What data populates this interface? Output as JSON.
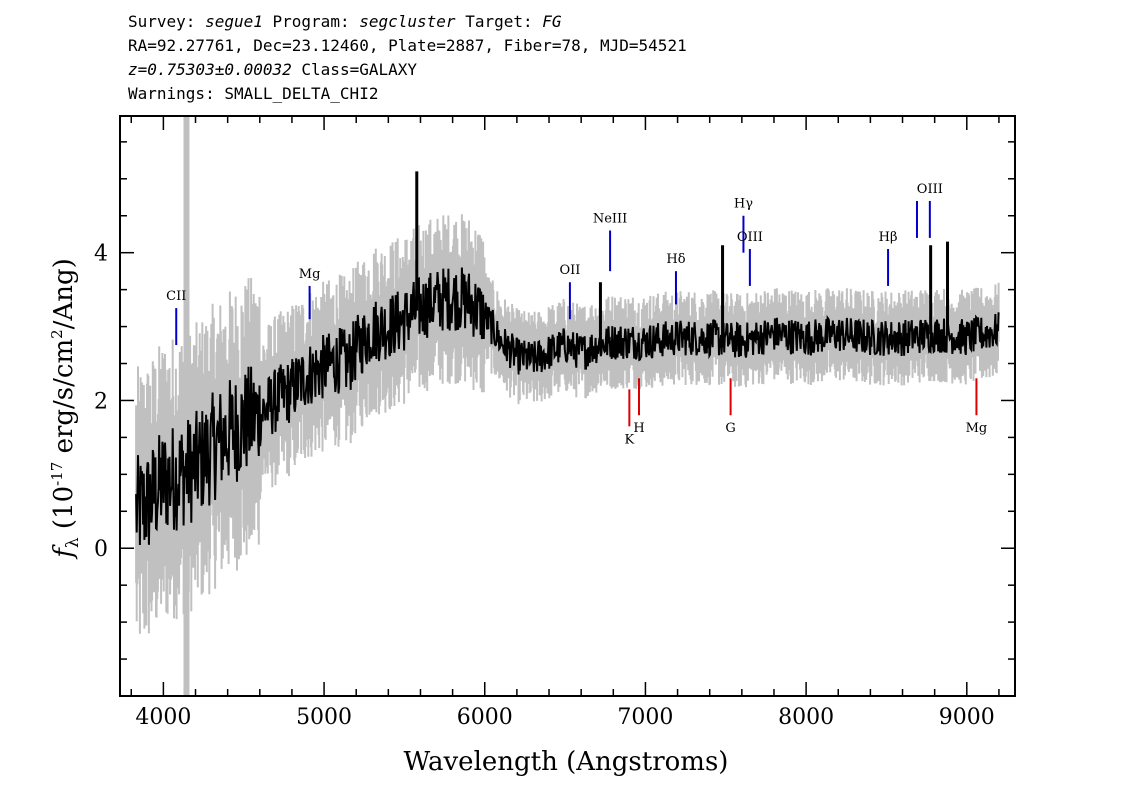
{
  "header": {
    "survey_label": "Survey:",
    "survey": "segue1",
    "program_label": "Program:",
    "program": "segcluster",
    "target_label": "Target:",
    "target": "FG",
    "coords": "RA=92.27761, Dec=23.12460, Plate=2887, Fiber=78, MJD=54521",
    "redshift": "z=0.75303±0.00032",
    "class": "Class=GALAXY",
    "warnings": "Warnings: SMALL_DELTA_CHI2"
  },
  "chart_data": {
    "type": "line",
    "xlabel": "Wavelength (Angstroms)",
    "ylabel": "f_λ (10^-17 erg/s/cm^2/Ang)",
    "xlim": [
      3730,
      9300
    ],
    "ylim": [
      -2.0,
      5.85
    ],
    "x_ticks": [
      4000,
      5000,
      6000,
      7000,
      8000,
      9000
    ],
    "y_ticks": [
      0,
      2,
      4
    ],
    "colors": {
      "flux": "#000000",
      "error_band": "#c0c0c0",
      "emission": "#0000cc",
      "absorption": "#dd0000"
    },
    "series": [
      {
        "kind": "flux",
        "x": [
          3830,
          3900,
          4000,
          4100,
          4200,
          4300,
          4400,
          4500,
          4600,
          4700,
          4800,
          4900,
          5000,
          5100,
          5150,
          5200,
          5300,
          5400,
          5500,
          5600,
          5700,
          5800,
          5900,
          6000,
          6100,
          6200,
          6300,
          6400,
          6500,
          6600,
          6700,
          6800,
          6900,
          7000,
          7200,
          7400,
          7600,
          7800,
          8000,
          8200,
          8400,
          8600,
          8800,
          9000,
          9200
        ],
        "y": [
          0.5,
          0.6,
          0.9,
          1.0,
          1.1,
          1.35,
          1.55,
          1.7,
          1.8,
          2.0,
          2.15,
          2.35,
          2.45,
          2.55,
          2.5,
          2.7,
          2.95,
          3.0,
          3.1,
          3.25,
          3.35,
          3.4,
          3.35,
          3.15,
          2.8,
          2.6,
          2.55,
          2.65,
          2.75,
          2.65,
          2.75,
          2.8,
          2.8,
          2.8,
          2.85,
          2.85,
          2.8,
          2.9,
          2.85,
          2.9,
          2.85,
          2.85,
          2.9,
          2.85,
          2.95
        ]
      }
    ],
    "emission_lines": [
      {
        "label": "CII",
        "x": 4080,
        "y0": 2.75,
        "y1": 3.25
      },
      {
        "label": "Mg",
        "x": 4910,
        "y0": 3.1,
        "y1": 3.55
      },
      {
        "label": "OII",
        "x": 6530,
        "y0": 3.1,
        "y1": 3.6
      },
      {
        "label": "NeIII",
        "x": 6780,
        "y0": 3.75,
        "y1": 4.3
      },
      {
        "label": "Hδ",
        "x": 7190,
        "y0": 3.3,
        "y1": 3.75
      },
      {
        "label": "Hγ",
        "x": 7610,
        "y0": 4.0,
        "y1": 4.5
      },
      {
        "label": "OIII",
        "x": 7650,
        "y0": 3.55,
        "y1": 4.05
      },
      {
        "label": "Hβ",
        "x": 8510,
        "y0": 3.55,
        "y1": 4.05
      },
      {
        "label": "",
        "x": 8690,
        "y0": 4.2,
        "y1": 4.7
      },
      {
        "label": "OIII",
        "x": 8770,
        "y0": 4.2,
        "y1": 4.7
      }
    ],
    "absorption_lines": [
      {
        "label": "K",
        "x": 6900,
        "y0": 1.65,
        "y1": 2.15
      },
      {
        "label": "H",
        "x": 6960,
        "y0": 1.8,
        "y1": 2.3
      },
      {
        "label": "G",
        "x": 7530,
        "y0": 1.8,
        "y1": 2.3
      },
      {
        "label": "Mg",
        "x": 9060,
        "y0": 1.8,
        "y1": 2.3
      }
    ]
  }
}
